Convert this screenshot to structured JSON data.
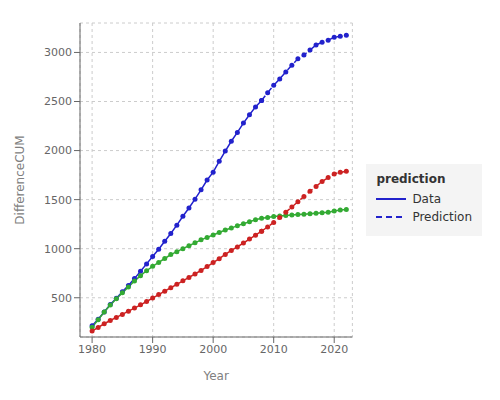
{
  "chart_data": {
    "type": "line",
    "xlabel": "Year",
    "ylabel": "DifferenceCUM",
    "legend_title": "prediction",
    "legend": "right",
    "grid": true,
    "xlim": [
      1978,
      2023
    ],
    "ylim": [
      100,
      3300
    ],
    "xticks": [
      1980,
      1990,
      2000,
      2010,
      2020
    ],
    "yticks": [
      500,
      1000,
      1500,
      2000,
      2500,
      3000
    ],
    "series": [
      {
        "name": "Data",
        "color": "#2222CC",
        "line_style": "solid",
        "marker": "o",
        "x": [
          1980,
          1981,
          1982,
          1983,
          1984,
          1985,
          1986,
          1987,
          1988,
          1989,
          1990,
          1991,
          1992,
          1993,
          1994,
          1995,
          1996,
          1997,
          1998,
          1999,
          2000,
          2001,
          2002,
          2003,
          2004,
          2005,
          2006,
          2007,
          2008
        ],
        "values": [
          215,
          280,
          355,
          430,
          495,
          560,
          625,
          695,
          770,
          845,
          920,
          995,
          1075,
          1155,
          1240,
          1330,
          1415,
          1505,
          1600,
          1700,
          1780,
          1890,
          1995,
          2095,
          2185,
          2280,
          2365,
          2445,
          2510
        ]
      },
      {
        "name": "Prediction",
        "color": "#2222CC",
        "line_style": "dashed",
        "marker": "o",
        "x": [
          2008,
          2009,
          2010,
          2011,
          2012,
          2013,
          2014,
          2015,
          2016,
          2017,
          2018,
          2019,
          2020,
          2021,
          2022
        ],
        "values": [
          2510,
          2590,
          2665,
          2730,
          2800,
          2870,
          2935,
          2975,
          3025,
          3075,
          3105,
          3125,
          3155,
          3165,
          3175
        ]
      },
      {
        "name": "Data",
        "color": "#33AA33",
        "line_style": "solid",
        "marker": "o",
        "x": [
          1980,
          1981,
          1982,
          1983,
          1984,
          1985,
          1986,
          1987,
          1988,
          1989,
          1990,
          1991,
          1992,
          1993,
          1994,
          1995,
          1996,
          1997,
          1998,
          1999,
          2000,
          2001,
          2002,
          2003,
          2004,
          2005,
          2006,
          2007,
          2008,
          2009,
          2010,
          2011,
          2012,
          2013,
          2014,
          2015,
          2016,
          2017,
          2018,
          2019,
          2020,
          2021,
          2022
        ],
        "values": [
          200,
          275,
          355,
          425,
          490,
          550,
          610,
          670,
          725,
          775,
          820,
          860,
          900,
          940,
          970,
          1000,
          1030,
          1060,
          1090,
          1115,
          1140,
          1165,
          1190,
          1210,
          1235,
          1255,
          1275,
          1295,
          1310,
          1318,
          1328,
          1333,
          1338,
          1343,
          1348,
          1352,
          1357,
          1362,
          1367,
          1372,
          1385,
          1395,
          1400
        ]
      },
      {
        "name": "Data",
        "color": "#CC2222",
        "line_style": "solid",
        "marker": "o",
        "x": [
          1980,
          1981,
          1982,
          1983,
          1984,
          1985,
          1986,
          1987,
          1988,
          1989,
          1990,
          1991,
          1992,
          1993,
          1994,
          1995,
          1996,
          1997,
          1998,
          1999,
          2000,
          2001,
          2002,
          2003,
          2004,
          2005,
          2006,
          2007,
          2008
        ],
        "values": [
          160,
          198,
          235,
          268,
          300,
          330,
          363,
          395,
          428,
          462,
          497,
          532,
          567,
          602,
          637,
          672,
          707,
          742,
          778,
          818,
          858,
          898,
          942,
          982,
          1018,
          1058,
          1098,
          1138,
          1178
        ]
      },
      {
        "name": "Prediction",
        "color": "#CC2222",
        "line_style": "dashed",
        "marker": "o",
        "x": [
          2008,
          2009,
          2010,
          2011,
          2012,
          2013,
          2014,
          2015,
          2016,
          2017,
          2018,
          2019,
          2020,
          2021,
          2022
        ],
        "values": [
          1178,
          1222,
          1268,
          1318,
          1372,
          1425,
          1478,
          1532,
          1585,
          1635,
          1685,
          1725,
          1762,
          1778,
          1788
        ]
      }
    ]
  }
}
